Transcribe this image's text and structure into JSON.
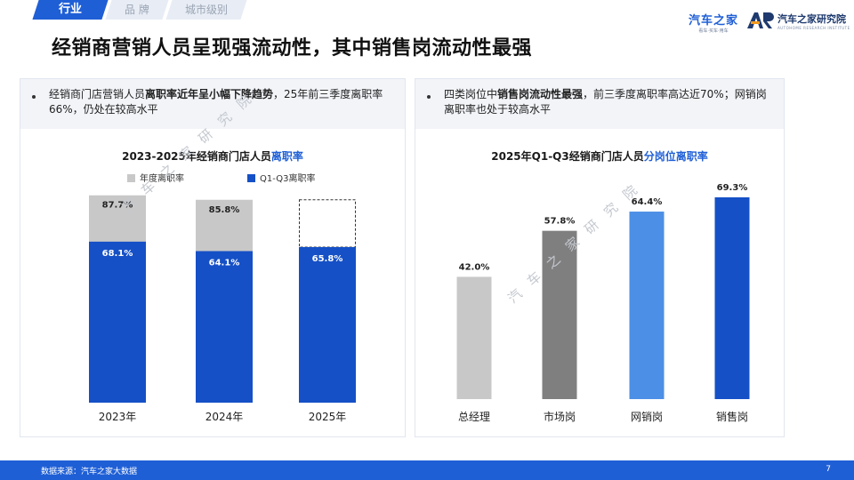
{
  "header": {
    "tabs": [
      {
        "label": "行业",
        "active": true
      },
      {
        "label": "品 牌",
        "active": false
      },
      {
        "label": "城市级别",
        "active": false
      }
    ],
    "logo_brand": "汽车之家",
    "logo_brand_sub": "看车·买车·用车",
    "logo_institute": "汽车之家研究院",
    "logo_institute_sub": "AUTOHOME RESEARCH INSTITUTE"
  },
  "page_title": "经销商营销人员呈现强流动性，其中销售岗流动性最强",
  "left_panel": {
    "note_pre": "经销商门店营销人员",
    "note_bold": "离职率近年呈小幅下降趋势",
    "note_post": "，25年前三季度离职率66%，仍处在较高水平"
  },
  "right_panel": {
    "note_pre": "四类岗位中",
    "note_bold": "销售岗流动性最强",
    "note_post": "，前三季度离职率高达近70%；网销岗离职率也处于较高水平"
  },
  "watermark": "汽车之家研究院",
  "chart_data": [
    {
      "type": "bar",
      "title_pre": "2023-2025年经销商门店人员",
      "title_hl": "离职率",
      "categories": [
        "2023年",
        "2024年",
        "2025年"
      ],
      "series": [
        {
          "name": "年度离职率",
          "values": [
            87.7,
            85.8,
            null
          ],
          "labels": [
            "87.7%",
            "85.8%",
            ""
          ],
          "color": "#c8c8c8"
        },
        {
          "name": "Q1-Q3离职率",
          "values": [
            68.1,
            64.1,
            65.8
          ],
          "labels": [
            "68.1%",
            "64.1%",
            "65.8%"
          ],
          "color": "#1550c6"
        }
      ],
      "overlay": true,
      "legend": "top-left",
      "ylim": [
        0,
        100
      ],
      "grid": false
    },
    {
      "type": "bar",
      "title_pre": "2025年Q1-Q3经销商门店人员",
      "title_hl": "分岗位离职率",
      "categories": [
        "总经理",
        "市场岗",
        "网销岗",
        "销售岗"
      ],
      "values": [
        42.0,
        57.8,
        64.4,
        69.3
      ],
      "labels": [
        "42.0%",
        "57.8%",
        "64.4%",
        "69.3%"
      ],
      "colors": [
        "#c8c8c8",
        "#7f7f7f",
        "#4c8fe6",
        "#1550c6"
      ],
      "ylim": [
        0,
        100
      ],
      "grid": false
    }
  ],
  "footer": {
    "source": "数据来源：汽车之家大数据",
    "page": "7"
  },
  "colors": {
    "primary_blue": "#1f5fd6",
    "dark_blue": "#1550c6",
    "light_blue": "#4c8fe6",
    "gray_light": "#c8c8c8",
    "gray_dark": "#7f7f7f"
  }
}
